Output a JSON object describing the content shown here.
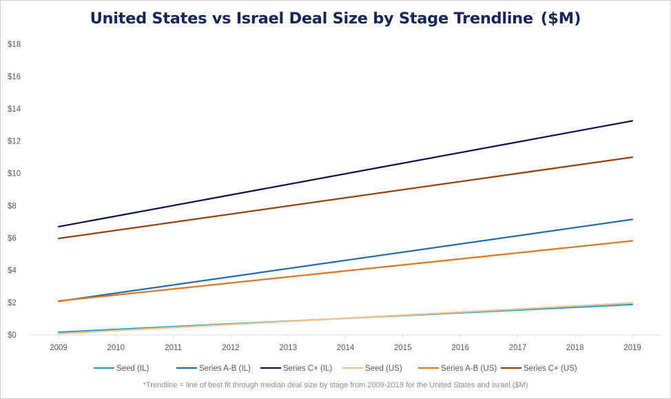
{
  "chart_data": {
    "type": "line",
    "title": "United States vs Israel Deal Size by Stage Trendline",
    "title_mark": "*",
    "title_suffix": " ($M)",
    "x": [
      "2009",
      "2010",
      "2011",
      "2012",
      "2013",
      "2014",
      "2015",
      "2016",
      "2017",
      "2018",
      "2019"
    ],
    "ylim": [
      0,
      18
    ],
    "yticks": [
      0,
      2,
      4,
      6,
      8,
      10,
      12,
      14,
      16,
      18
    ],
    "ytick_labels": [
      "$0",
      "$2",
      "$4",
      "$6",
      "$8",
      "$10",
      "$12",
      "$14",
      "$16",
      "$18"
    ],
    "grid": false,
    "legend_position": "bottom",
    "series": [
      {
        "name": "Seed (IL)",
        "color": "#1fa2d3",
        "start": 0.17,
        "end": 1.88
      },
      {
        "name": "Series A-B (IL)",
        "color": "#1f6cb5",
        "start": 2.08,
        "end": 7.15
      },
      {
        "name": "Series C+ (IL)",
        "color": "#0d1450",
        "start": 6.7,
        "end": 13.25
      },
      {
        "name": "Seed (US)",
        "color": "#f6c28c",
        "start": 0.08,
        "end": 1.98
      },
      {
        "name": "Series A-B (US)",
        "color": "#e0761f",
        "start": 2.1,
        "end": 5.82
      },
      {
        "name": "Series C+ (US)",
        "color": "#9a3e0c",
        "start": 5.97,
        "end": 11.0
      }
    ],
    "footnote": "*Trendline = line of best fit through median deal size by stage from 2009-2019 for the United States and Israel ($M)"
  }
}
